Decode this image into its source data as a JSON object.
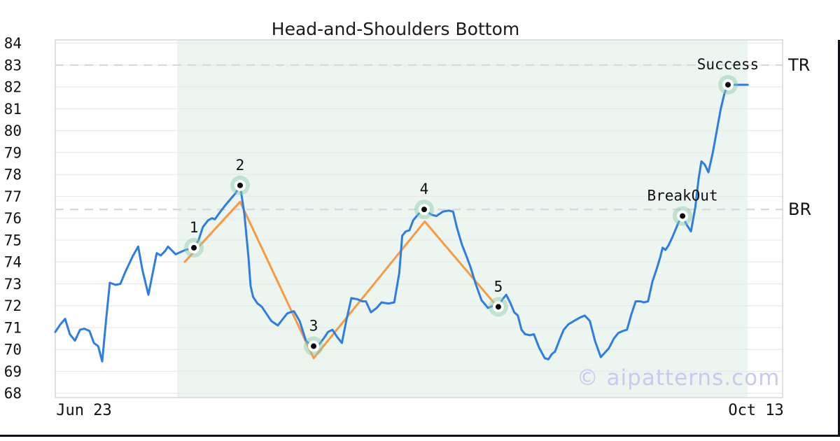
{
  "title": "Head-and-Shoulders Bottom",
  "watermark": "© aipatterns.com",
  "colors": {
    "price_line": "#2e7de0",
    "pattern_line": "#f79a43",
    "shade": "#ecf5f0",
    "halo": "rgba(139,204,168,0.45)",
    "marker_ring": "#ffffff",
    "marker_dot": "#0a0a0a",
    "grid": "#e9e9e9",
    "spine": "#d7d7d7",
    "dashed_level": "#d8d8d8",
    "tick_text": "#111111",
    "frame": "#10101c"
  },
  "chart_data": {
    "type": "line",
    "title": "Head-and-Shoulders Bottom",
    "xlabel": "",
    "ylabel": "",
    "ylim": [
      67.8,
      84.15
    ],
    "y_ticks": [
      68,
      69,
      70,
      71,
      72,
      73,
      74,
      75,
      76,
      77,
      78,
      79,
      80,
      81,
      82,
      83,
      84
    ],
    "x_ticks": [
      {
        "label": "Jun 23",
        "x": 0.0395
      },
      {
        "label": "Oct 13",
        "x": 0.9635
      }
    ],
    "shade": {
      "x0": 0.1675,
      "x1": 0.952
    },
    "levels": [
      {
        "label": "TR",
        "value": 83.0
      },
      {
        "label": "BR",
        "value": 76.4
      }
    ],
    "series": [
      {
        "name": "price",
        "points": [
          [
            0.0,
            70.8
          ],
          [
            0.007,
            71.15
          ],
          [
            0.0135,
            71.4
          ],
          [
            0.02,
            70.7
          ],
          [
            0.027,
            70.4
          ],
          [
            0.034,
            70.9
          ],
          [
            0.04,
            70.95
          ],
          [
            0.047,
            70.85
          ],
          [
            0.053,
            70.3
          ],
          [
            0.059,
            70.15
          ],
          [
            0.0645,
            69.45
          ],
          [
            0.07,
            71.4
          ],
          [
            0.075,
            73.05
          ],
          [
            0.083,
            72.95
          ],
          [
            0.0895,
            73.0
          ],
          [
            0.097,
            73.6
          ],
          [
            0.107,
            74.3
          ],
          [
            0.114,
            74.7
          ],
          [
            0.12,
            73.6
          ],
          [
            0.128,
            72.5
          ],
          [
            0.134,
            73.5
          ],
          [
            0.1395,
            74.4
          ],
          [
            0.145,
            74.3
          ],
          [
            0.151,
            74.5
          ],
          [
            0.155,
            74.7
          ],
          [
            0.161,
            74.5
          ],
          [
            0.1655,
            74.35
          ],
          [
            0.172,
            74.45
          ],
          [
            0.179,
            74.55
          ],
          [
            0.185,
            74.6
          ],
          [
            0.1906,
            74.65
          ],
          [
            0.197,
            75.0
          ],
          [
            0.203,
            75.6
          ],
          [
            0.21,
            75.9
          ],
          [
            0.2156,
            76.0
          ],
          [
            0.2194,
            75.95
          ],
          [
            0.227,
            76.3
          ],
          [
            0.234,
            76.6
          ],
          [
            0.2416,
            76.9
          ],
          [
            0.248,
            77.15
          ],
          [
            0.2541,
            77.5
          ],
          [
            0.26,
            76.2
          ],
          [
            0.2656,
            74.2
          ],
          [
            0.2685,
            72.9
          ],
          [
            0.272,
            72.4
          ],
          [
            0.278,
            72.1
          ],
          [
            0.284,
            71.95
          ],
          [
            0.29,
            71.65
          ],
          [
            0.297,
            71.3
          ],
          [
            0.306,
            71.1
          ],
          [
            0.313,
            71.4
          ],
          [
            0.319,
            71.65
          ],
          [
            0.328,
            71.75
          ],
          [
            0.336,
            71.3
          ],
          [
            0.3446,
            70.4
          ],
          [
            0.35,
            70.25
          ],
          [
            0.3552,
            70.15
          ],
          [
            0.362,
            70.2
          ],
          [
            0.369,
            70.5
          ],
          [
            0.375,
            70.8
          ],
          [
            0.381,
            70.9
          ],
          [
            0.388,
            70.55
          ],
          [
            0.394,
            70.3
          ],
          [
            0.4,
            71.3
          ],
          [
            0.407,
            72.35
          ],
          [
            0.415,
            72.3
          ],
          [
            0.422,
            72.2
          ],
          [
            0.427,
            72.2
          ],
          [
            0.434,
            71.7
          ],
          [
            0.442,
            71.9
          ],
          [
            0.4485,
            72.15
          ],
          [
            0.458,
            72.1
          ],
          [
            0.466,
            72.15
          ],
          [
            0.473,
            73.5
          ],
          [
            0.477,
            75.2
          ],
          [
            0.482,
            75.4
          ],
          [
            0.487,
            75.45
          ],
          [
            0.492,
            75.9
          ],
          [
            0.4995,
            76.2
          ],
          [
            0.5072,
            76.4
          ],
          [
            0.513,
            76.25
          ],
          [
            0.518,
            76.15
          ],
          [
            0.524,
            76.1
          ],
          [
            0.533,
            76.3
          ],
          [
            0.541,
            76.35
          ],
          [
            0.547,
            76.3
          ],
          [
            0.552,
            75.6
          ],
          [
            0.559,
            74.8
          ],
          [
            0.565,
            74.3
          ],
          [
            0.571,
            73.75
          ],
          [
            0.578,
            73.0
          ],
          [
            0.586,
            72.25
          ],
          [
            0.595,
            71.9
          ],
          [
            0.6025,
            72.0
          ],
          [
            0.6092,
            71.95
          ],
          [
            0.615,
            72.3
          ],
          [
            0.62,
            72.5
          ],
          [
            0.626,
            72.1
          ],
          [
            0.631,
            71.7
          ],
          [
            0.636,
            71.55
          ],
          [
            0.641,
            70.9
          ],
          [
            0.646,
            70.7
          ],
          [
            0.6525,
            70.65
          ],
          [
            0.658,
            70.7
          ],
          [
            0.665,
            70.1
          ],
          [
            0.673,
            69.6
          ],
          [
            0.678,
            69.55
          ],
          [
            0.683,
            69.8
          ],
          [
            0.687,
            69.9
          ],
          [
            0.694,
            70.5
          ],
          [
            0.699,
            70.9
          ],
          [
            0.7055,
            71.15
          ],
          [
            0.713,
            71.3
          ],
          [
            0.721,
            71.45
          ],
          [
            0.728,
            71.55
          ],
          [
            0.735,
            71.3
          ],
          [
            0.742,
            70.4
          ],
          [
            0.75,
            69.65
          ],
          [
            0.7555,
            69.85
          ],
          [
            0.761,
            70.05
          ],
          [
            0.768,
            70.5
          ],
          [
            0.774,
            70.75
          ],
          [
            0.7806,
            70.85
          ],
          [
            0.786,
            70.9
          ],
          [
            0.792,
            71.6
          ],
          [
            0.798,
            72.2
          ],
          [
            0.8046,
            72.2
          ],
          [
            0.809,
            72.15
          ],
          [
            0.815,
            72.2
          ],
          [
            0.821,
            73.1
          ],
          [
            0.827,
            73.7
          ],
          [
            0.8316,
            74.2
          ],
          [
            0.835,
            74.65
          ],
          [
            0.839,
            74.55
          ],
          [
            0.843,
            74.75
          ],
          [
            0.848,
            75.1
          ],
          [
            0.853,
            75.5
          ],
          [
            0.8575,
            75.85
          ],
          [
            0.8624,
            76.1
          ],
          [
            0.868,
            75.7
          ],
          [
            0.874,
            75.4
          ],
          [
            0.88,
            76.5
          ],
          [
            0.8845,
            77.8
          ],
          [
            0.8884,
            78.6
          ],
          [
            0.893,
            78.45
          ],
          [
            0.898,
            78.1
          ],
          [
            0.904,
            79.0
          ],
          [
            0.9095,
            80.0
          ],
          [
            0.915,
            81.0
          ],
          [
            0.92,
            81.7
          ],
          [
            0.9249,
            82.1
          ],
          [
            0.9326,
            82.1
          ],
          [
            0.952,
            82.1
          ]
        ]
      },
      {
        "name": "pattern-outline",
        "points": [
          [
            0.178,
            74.0
          ],
          [
            0.2541,
            76.75
          ],
          [
            0.3552,
            69.6
          ],
          [
            0.508,
            75.85
          ],
          [
            0.6078,
            71.95
          ]
        ]
      }
    ],
    "annotations": [
      {
        "label": "1",
        "x": 0.1906,
        "y": 74.65
      },
      {
        "label": "2",
        "x": 0.2541,
        "y": 77.5
      },
      {
        "label": "3",
        "x": 0.3552,
        "y": 70.15
      },
      {
        "label": "4",
        "x": 0.5072,
        "y": 76.4
      },
      {
        "label": "5",
        "x": 0.6092,
        "y": 71.95
      },
      {
        "label": "BreakOut",
        "x": 0.8624,
        "y": 76.1
      },
      {
        "label": "Success",
        "x": 0.9249,
        "y": 82.1
      }
    ],
    "legend": null,
    "grid": true
  }
}
